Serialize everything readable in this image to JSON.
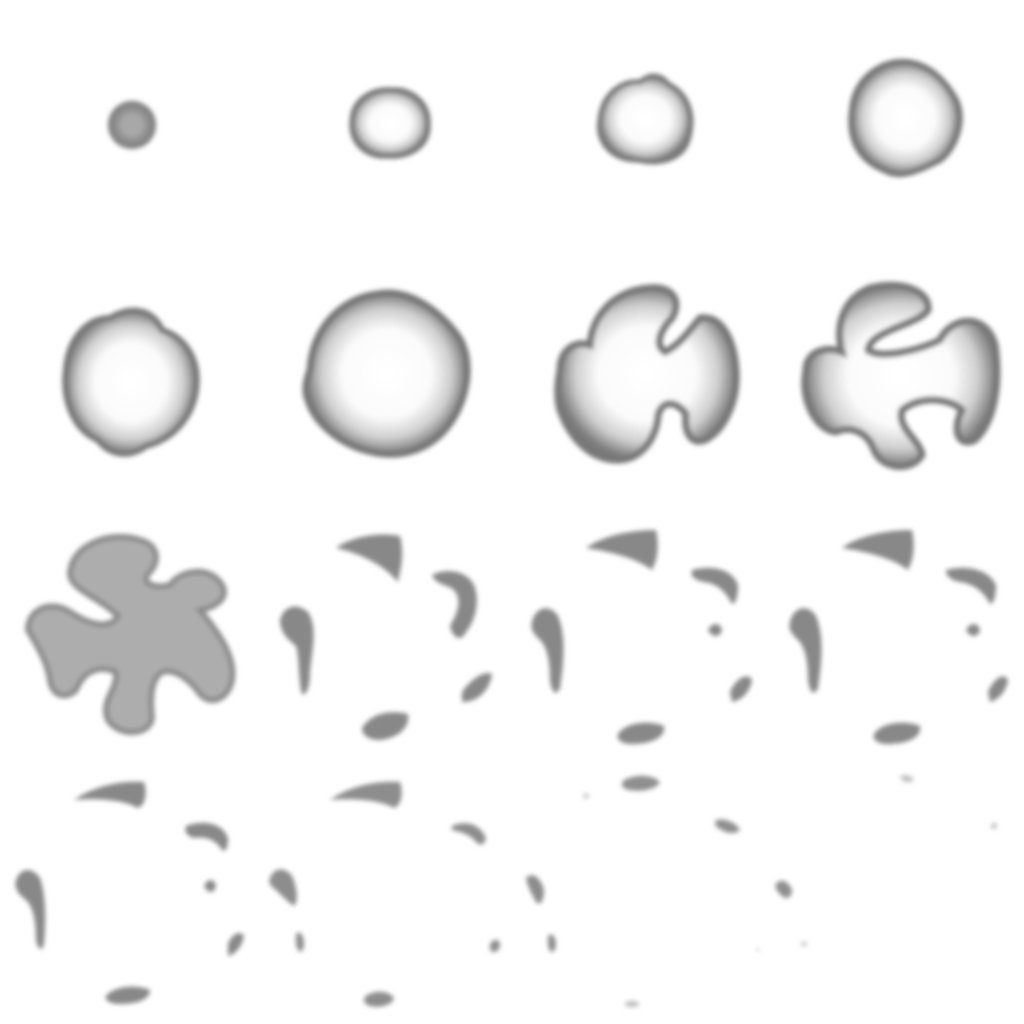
{
  "sprite_sheet": {
    "description_free": true,
    "rows": 4,
    "columns": 4,
    "frame_count": 16,
    "colors": {
      "background": "#ffffff",
      "core": "#ffffff",
      "edge": "#666666"
    },
    "frames": [
      {
        "stage": "puff-small"
      },
      {
        "stage": "puff-growing"
      },
      {
        "stage": "puff-growing"
      },
      {
        "stage": "puff-large"
      },
      {
        "stage": "puff-large"
      },
      {
        "stage": "puff-largest"
      },
      {
        "stage": "pinwheel-forming"
      },
      {
        "stage": "pinwheel"
      },
      {
        "stage": "pinwheel-breaking"
      },
      {
        "stage": "fragments"
      },
      {
        "stage": "fragments"
      },
      {
        "stage": "fragments"
      },
      {
        "stage": "fragments-fading"
      },
      {
        "stage": "fragments-fading"
      },
      {
        "stage": "specks"
      },
      {
        "stage": "specks-faint"
      }
    ]
  }
}
